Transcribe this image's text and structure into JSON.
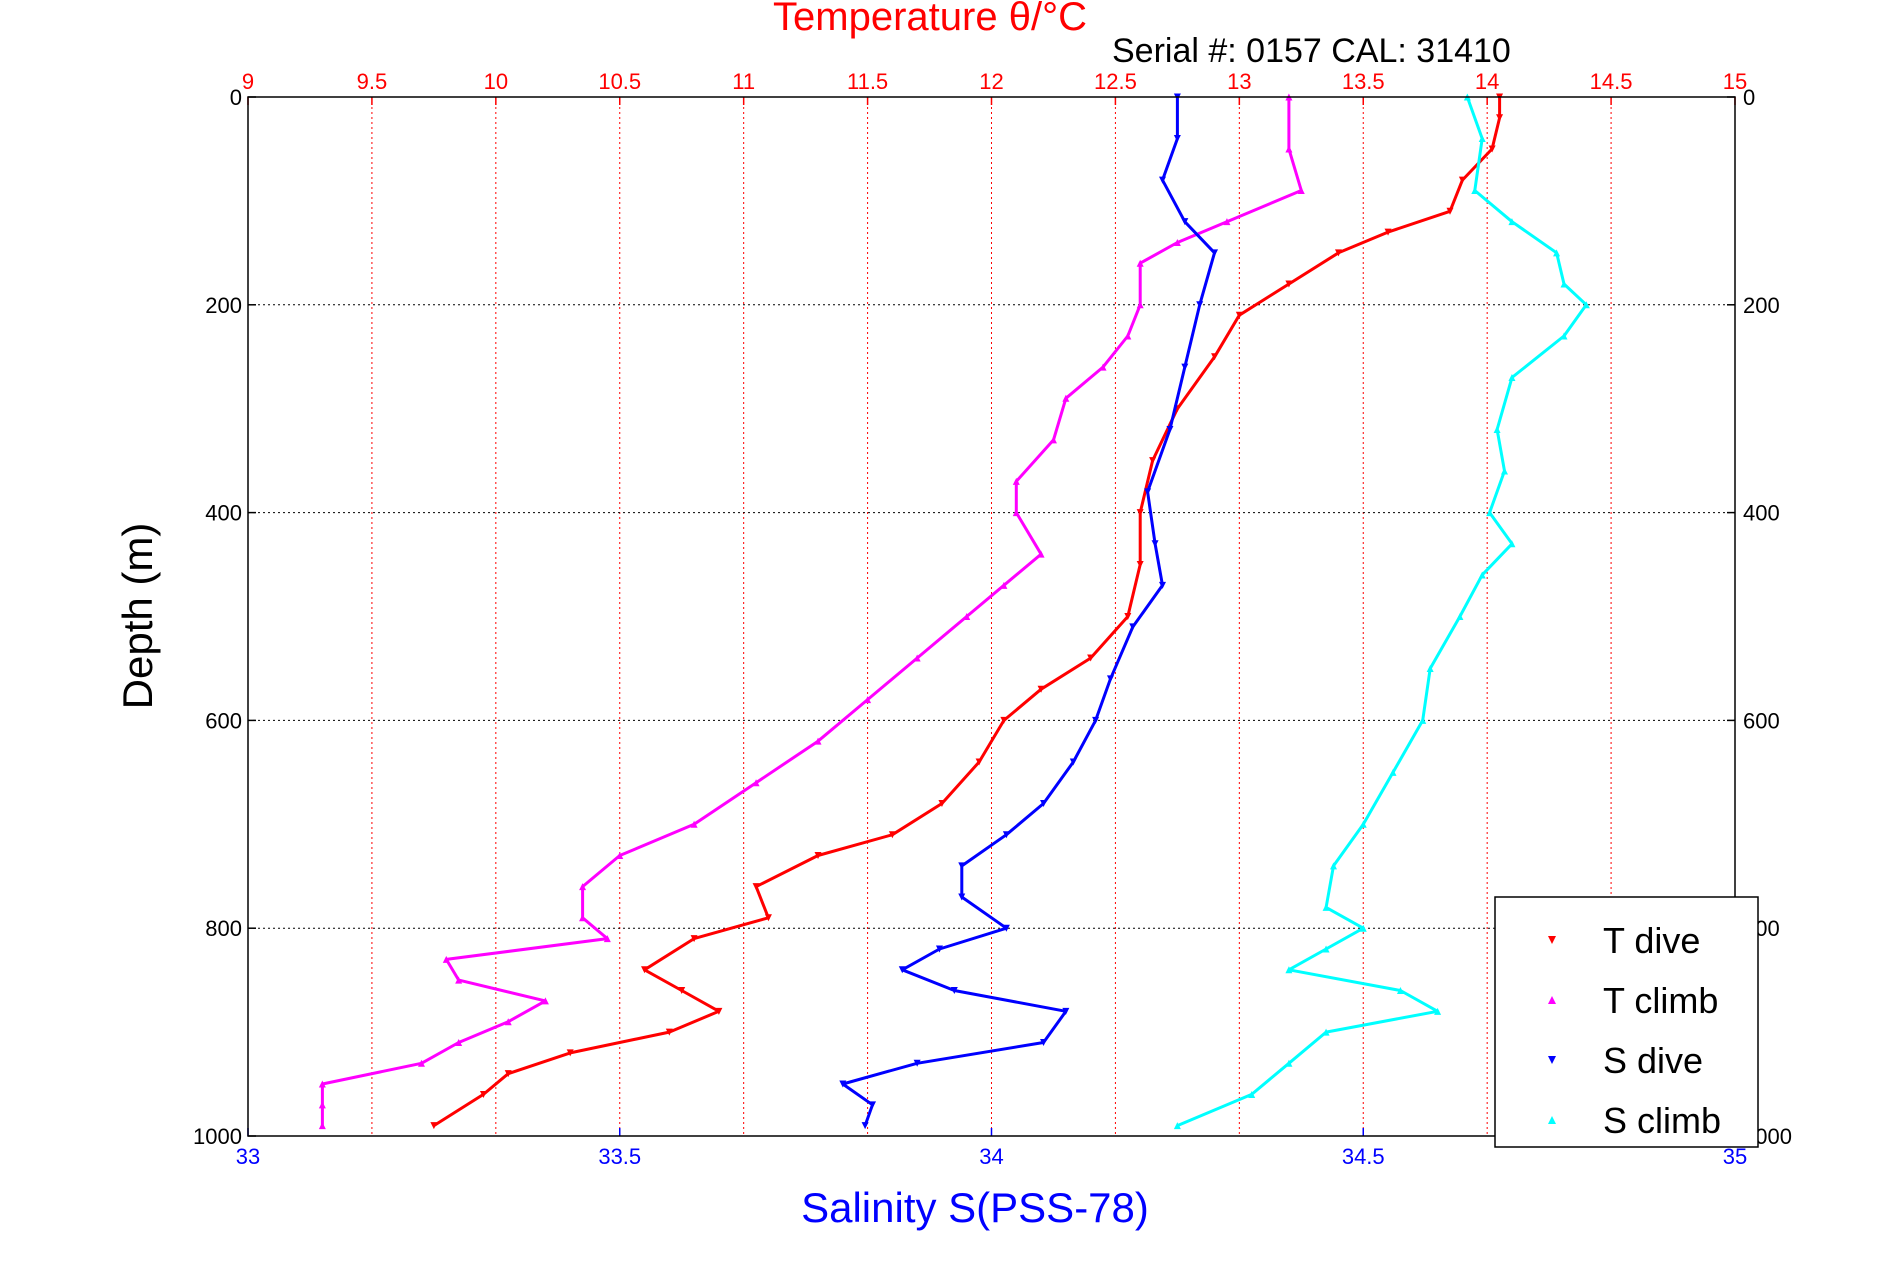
{
  "header": {
    "title": "Temperature θ/°C",
    "serial": "Serial #: 0157  CAL: 31410"
  },
  "axes": {
    "ylabel": "Depth (m)",
    "xlabel": "Salinity S(PSS-78)",
    "top_ticks": [
      "9",
      "9.5",
      "10",
      "10.5",
      "11",
      "11.5",
      "12",
      "12.5",
      "13",
      "13.5",
      "14",
      "14.5",
      "15"
    ],
    "bottom_ticks": [
      "33",
      "33.5",
      "34",
      "34.5",
      "35"
    ],
    "left_ticks": [
      "0",
      "200",
      "400",
      "600",
      "800",
      "1000"
    ],
    "right_ticks": [
      "0",
      "200",
      "400",
      "600",
      "800",
      "1000"
    ]
  },
  "colors": {
    "t_dive": "#ff0000",
    "t_climb": "#ff00ff",
    "s_dive": "#0000ff",
    "s_climb": "#00ffff",
    "grid_vertical": "#ff0000",
    "grid_horizontal": "#000000"
  },
  "chart_data": {
    "type": "scatter",
    "title": "Temperature θ/°C",
    "ylabel": "Depth (m)",
    "xlabel": "Salinity S(PSS-78)",
    "ylim": [
      1000,
      0
    ],
    "xlim_temperature": [
      9,
      15
    ],
    "xlim_salinity": [
      33,
      35
    ],
    "grid": true,
    "legend_position": "bottom-right",
    "series": [
      {
        "name": "T dive",
        "axis": "temperature",
        "marker": "triangle-down",
        "points": [
          [
            14.05,
            0
          ],
          [
            14.05,
            20
          ],
          [
            14.02,
            50
          ],
          [
            13.9,
            80
          ],
          [
            13.85,
            110
          ],
          [
            13.6,
            130
          ],
          [
            13.4,
            150
          ],
          [
            13.2,
            180
          ],
          [
            13.0,
            210
          ],
          [
            12.9,
            250
          ],
          [
            12.75,
            300
          ],
          [
            12.65,
            350
          ],
          [
            12.6,
            400
          ],
          [
            12.6,
            450
          ],
          [
            12.55,
            500
          ],
          [
            12.4,
            540
          ],
          [
            12.2,
            570
          ],
          [
            12.05,
            600
          ],
          [
            11.95,
            640
          ],
          [
            11.8,
            680
          ],
          [
            11.6,
            710
          ],
          [
            11.3,
            730
          ],
          [
            11.05,
            760
          ],
          [
            11.1,
            790
          ],
          [
            10.8,
            810
          ],
          [
            10.6,
            840
          ],
          [
            10.75,
            860
          ],
          [
            10.9,
            880
          ],
          [
            10.7,
            900
          ],
          [
            10.3,
            920
          ],
          [
            10.05,
            940
          ],
          [
            9.95,
            960
          ],
          [
            9.75,
            990
          ]
        ]
      },
      {
        "name": "T climb",
        "axis": "temperature",
        "marker": "triangle-up",
        "points": [
          [
            13.2,
            0
          ],
          [
            13.2,
            50
          ],
          [
            13.25,
            90
          ],
          [
            12.95,
            120
          ],
          [
            12.75,
            140
          ],
          [
            12.6,
            160
          ],
          [
            12.6,
            200
          ],
          [
            12.55,
            230
          ],
          [
            12.45,
            260
          ],
          [
            12.3,
            290
          ],
          [
            12.25,
            330
          ],
          [
            12.1,
            370
          ],
          [
            12.1,
            400
          ],
          [
            12.2,
            440
          ],
          [
            12.05,
            470
          ],
          [
            11.9,
            500
          ],
          [
            11.7,
            540
          ],
          [
            11.5,
            580
          ],
          [
            11.3,
            620
          ],
          [
            11.05,
            660
          ],
          [
            10.8,
            700
          ],
          [
            10.5,
            730
          ],
          [
            10.35,
            760
          ],
          [
            10.35,
            790
          ],
          [
            10.45,
            810
          ],
          [
            9.8,
            830
          ],
          [
            9.85,
            850
          ],
          [
            10.2,
            870
          ],
          [
            10.05,
            890
          ],
          [
            9.85,
            910
          ],
          [
            9.7,
            930
          ],
          [
            9.3,
            950
          ],
          [
            9.3,
            970
          ],
          [
            9.3,
            990
          ]
        ]
      },
      {
        "name": "S dive",
        "axis": "salinity",
        "marker": "triangle-down",
        "points": [
          [
            34.25,
            0
          ],
          [
            34.25,
            40
          ],
          [
            34.23,
            80
          ],
          [
            34.26,
            120
          ],
          [
            34.3,
            150
          ],
          [
            34.28,
            200
          ],
          [
            34.26,
            260
          ],
          [
            34.24,
            320
          ],
          [
            34.21,
            380
          ],
          [
            34.22,
            430
          ],
          [
            34.23,
            470
          ],
          [
            34.19,
            510
          ],
          [
            34.16,
            560
          ],
          [
            34.14,
            600
          ],
          [
            34.11,
            640
          ],
          [
            34.07,
            680
          ],
          [
            34.02,
            710
          ],
          [
            33.96,
            740
          ],
          [
            33.96,
            770
          ],
          [
            34.02,
            800
          ],
          [
            33.93,
            820
          ],
          [
            33.88,
            840
          ],
          [
            33.95,
            860
          ],
          [
            34.1,
            880
          ],
          [
            34.07,
            910
          ],
          [
            33.9,
            930
          ],
          [
            33.8,
            950
          ],
          [
            33.84,
            970
          ],
          [
            33.83,
            990
          ]
        ]
      },
      {
        "name": "S climb",
        "axis": "salinity",
        "marker": "triangle-up",
        "points": [
          [
            34.64,
            0
          ],
          [
            34.66,
            40
          ],
          [
            34.65,
            90
          ],
          [
            34.7,
            120
          ],
          [
            34.76,
            150
          ],
          [
            34.77,
            180
          ],
          [
            34.8,
            200
          ],
          [
            34.77,
            230
          ],
          [
            34.7,
            270
          ],
          [
            34.68,
            320
          ],
          [
            34.69,
            360
          ],
          [
            34.67,
            400
          ],
          [
            34.7,
            430
          ],
          [
            34.66,
            460
          ],
          [
            34.63,
            500
          ],
          [
            34.59,
            550
          ],
          [
            34.58,
            600
          ],
          [
            34.54,
            650
          ],
          [
            34.5,
            700
          ],
          [
            34.46,
            740
          ],
          [
            34.45,
            780
          ],
          [
            34.5,
            800
          ],
          [
            34.45,
            820
          ],
          [
            34.4,
            840
          ],
          [
            34.55,
            860
          ],
          [
            34.6,
            880
          ],
          [
            34.45,
            900
          ],
          [
            34.4,
            930
          ],
          [
            34.35,
            960
          ],
          [
            34.25,
            990
          ]
        ]
      }
    ]
  }
}
